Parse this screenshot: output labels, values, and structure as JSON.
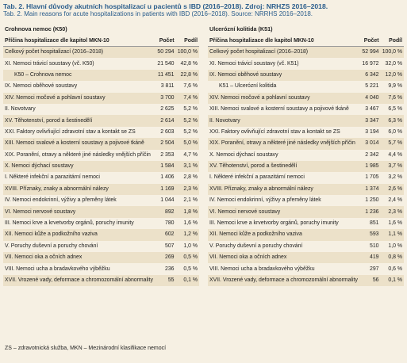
{
  "header": {
    "title": "Tab. 2. Hlavní důvody akutních hospitalizací u pacientů s IBD (2016–2018). Zdroj: NRHZS 2016–2018.",
    "subtitle": "Tab. 2. Main reasons for acute hospitalizations in patients with IBD (2016–2018). Source: NRRHS 2016–2018."
  },
  "tables": [
    {
      "caption": "Crohnova nemoc (K50)",
      "columns": [
        "Příčina hospitalizace dle kapitol MKN-10",
        "Počet",
        "Podíl"
      ],
      "rows": [
        [
          "Celkový počet hospitalizací (2016–2018)",
          "50 294",
          "100,0 %"
        ],
        [
          "XI. Nemoci trávicí soustavy (vč. K50)",
          "21 540",
          "42,8 %"
        ],
        [
          "K50 – Crohnova nemoc",
          "11 451",
          "22,8 %"
        ],
        [
          "IX. Nemoci oběhové soustavy",
          "3 811",
          "7,6 %"
        ],
        [
          "XIV. Nemoci močové a pohlavní soustavy",
          "3 700",
          "7,4 %"
        ],
        [
          "II. Novotvary",
          "2 625",
          "5,2 %"
        ],
        [
          "XV. Těhotenství, porod a šestinedělí",
          "2 614",
          "5,2 %"
        ],
        [
          "XXI. Faktory ovlivňující zdravotní stav a kontakt se ZS",
          "2 603",
          "5,2 %"
        ],
        [
          "XIII. Nemoci svalové a kosterní soustavy a pojivové tkáně",
          "2 504",
          "5,0 %"
        ],
        [
          "XIX. Poranění, otravy a některé jiné následky vnějších příčin",
          "2 353",
          "4,7 %"
        ],
        [
          "X. Nemoci dýchací soustavy",
          "1 584",
          "3,1 %"
        ],
        [
          "I. Některé infekční a parazitární nemoci",
          "1 406",
          "2,8 %"
        ],
        [
          "XVIII. Příznaky, znaky a abnormální nálezy",
          "1 169",
          "2,3 %"
        ],
        [
          "IV. Nemoci endokrinní, výživy a přeměny látek",
          "1 044",
          "2,1 %"
        ],
        [
          "VI. Nemoci nervové soustavy",
          "892",
          "1,8 %"
        ],
        [
          "III. Nemoci krve a krvetvorby orgánů, poruchy imunity",
          "780",
          "1,6 %"
        ],
        [
          "XII. Nemoci kůže a podkožního vaziva",
          "602",
          "1,2 %"
        ],
        [
          "V. Poruchy duševní a poruchy chování",
          "507",
          "1,0 %"
        ],
        [
          "VII. Nemoci oka a očních adnex",
          "269",
          "0,5 %"
        ],
        [
          "VIII. Nemoci ucha a bradavkového výběžku",
          "236",
          "0,5 %"
        ],
        [
          "XVII. Vrozené vady, deformace a chromozomální abnormality",
          "55",
          "0,1 %"
        ]
      ]
    },
    {
      "caption": "Ulcerózní kolitida (K51)",
      "columns": [
        "Příčina hospitalizace dle kapitol MKN-10",
        "Počet",
        "Podíl"
      ],
      "rows": [
        [
          "Celkový počet hospitalizací (2016–2018)",
          "52 994",
          "100,0 %"
        ],
        [
          "XI. Nemoci trávicí soustavy (vč. K51)",
          "16 972",
          "32,0 %"
        ],
        [
          "IX. Nemoci oběhové soustavy",
          "6 342",
          "12,0 %"
        ],
        [
          "K51 – Ulcerózní kolitida",
          "5 221",
          "9,9 %"
        ],
        [
          "XIV. Nemoci močové a pohlavní soustavy",
          "4 040",
          "7,6 %"
        ],
        [
          "XIII. Nemoci svalové a kosterní soustavy a pojivové tkáně",
          "3 467",
          "6,5 %"
        ],
        [
          "II. Novotvary",
          "3 347",
          "6,3 %"
        ],
        [
          "XXI. Faktory ovlivňující zdravotní stav a kontakt se ZS",
          "3 194",
          "6,0 %"
        ],
        [
          "XIX. Poranění, otravy a některé jiné následky vnějších příčin",
          "3 014",
          "5,7 %"
        ],
        [
          "X. Nemoci dýchací soustavy",
          "2 342",
          "4,4 %"
        ],
        [
          "XV. Těhotenství, porod a šestinedělí",
          "1 985",
          "3,7 %"
        ],
        [
          "I. Některé infekční a parazitární nemoci",
          "1 705",
          "3,2 %"
        ],
        [
          "XVIII. Příznaky, znaky a abnormální nálezy",
          "1 374",
          "2,6 %"
        ],
        [
          "IV. Nemoci endokrinní, výživy a přeměny látek",
          "1 250",
          "2,4 %"
        ],
        [
          "VI. Nemoci nervové soustavy",
          "1 236",
          "2,3 %"
        ],
        [
          "III. Nemoci krve a krvetvorby orgánů, poruchy imunity",
          "851",
          "1,6 %"
        ],
        [
          "XII. Nemoci kůže a podkožního vaziva",
          "593",
          "1,1 %"
        ],
        [
          "V. Poruchy duševní a poruchy chování",
          "510",
          "1,0 %"
        ],
        [
          "VII. Nemoci oka a očních adnex",
          "419",
          "0,8 %"
        ],
        [
          "VIII. Nemoci ucha a bradavkového výběžku",
          "297",
          "0,6 %"
        ],
        [
          "XVII. Vrozené vady, deformace a chromozomální abnormality",
          "56",
          "0,1 %"
        ]
      ]
    }
  ],
  "footer": "ZS – zdravotnická služba, MKN – Mezinárodní klasifikace nemocí"
}
